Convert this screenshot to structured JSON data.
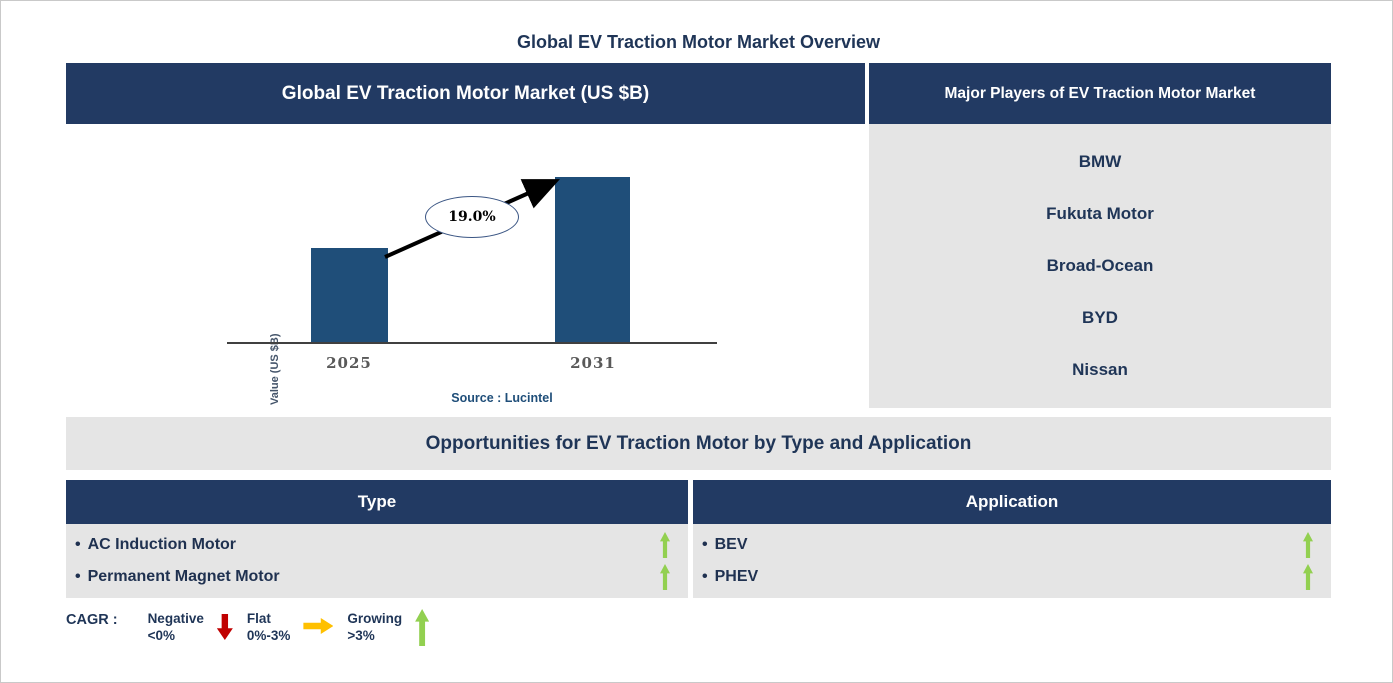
{
  "page": {
    "title": "Global EV Traction Motor Market Overview"
  },
  "left_panel": {
    "header": "Global EV Traction Motor Market (US $B)"
  },
  "chart_data": {
    "type": "bar",
    "title": "Global EV Traction Motor Market (US $B)",
    "categories": [
      "2025",
      "2031"
    ],
    "values": [
      0.57,
      1.0
    ],
    "value_scale": "relative bar heights (y-axis has no numeric tick labels)",
    "ylabel": "Value (US $B)",
    "xlabel": "",
    "grid": false,
    "annotations": {
      "cagr_label": "19.0%",
      "cagr_arrow": "black arrow from top of 2025 bar to top of 2031 bar"
    },
    "source": "Source : Lucintel"
  },
  "right_panel": {
    "header": "Major Players of EV Traction Motor Market",
    "players": [
      "BMW",
      "Fukuta Motor",
      "Broad-Ocean",
      "BYD",
      "Nissan"
    ]
  },
  "opportunities": {
    "title": "Opportunities for EV Traction Motor by Type and Application",
    "bullet": "•",
    "columns": [
      {
        "header": "Type",
        "items": [
          {
            "label": "AC Induction Motor",
            "trend": "growing"
          },
          {
            "label": "Permanent Magnet Motor",
            "trend": "growing"
          }
        ]
      },
      {
        "header": "Application",
        "items": [
          {
            "label": "BEV",
            "trend": "growing"
          },
          {
            "label": "PHEV",
            "trend": "growing"
          }
        ]
      }
    ]
  },
  "legend": {
    "label": "CAGR :",
    "entries": [
      {
        "name": "Negative",
        "range": "<0%",
        "arrow": "down",
        "color": "#C00000"
      },
      {
        "name": "Flat",
        "range": "0%-3%",
        "arrow": "right",
        "color": "#FFC000"
      },
      {
        "name": "Growing",
        "range": ">3%",
        "arrow": "up",
        "color": "#92D050"
      }
    ]
  },
  "colors": {
    "header_navy": "#223A63",
    "bar_blue": "#1F4E79",
    "panel_gray": "#E5E5E5",
    "text_navy": "#1F3557",
    "growing_green": "#92D050",
    "negative_red": "#C00000",
    "flat_yellow": "#FFC000",
    "source_blue": "#1F4E79"
  }
}
